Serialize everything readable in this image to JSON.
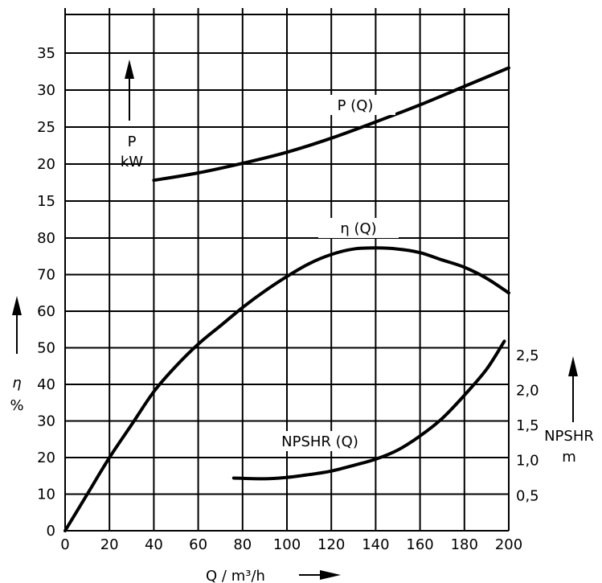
{
  "chart_data": {
    "type": "line",
    "x": {
      "label": "Q / m³/h",
      "range": [
        0,
        200
      ],
      "ticks": [
        0,
        20,
        40,
        60,
        80,
        100,
        120,
        140,
        160,
        180,
        200
      ]
    },
    "axes": {
      "power": {
        "label": "P",
        "unit": "kW",
        "range": [
          10,
          35
        ],
        "ticks": [
          15,
          20,
          25,
          30,
          35
        ]
      },
      "efficiency": {
        "label": "η",
        "unit": "%",
        "range": [
          0,
          80
        ],
        "ticks": [
          0,
          10,
          20,
          30,
          40,
          50,
          60,
          70,
          80
        ]
      },
      "npshr": {
        "label": "NPSHR",
        "unit": "m",
        "range": [
          0,
          4
        ],
        "ticks": [
          "0,5",
          "1,0",
          "1,5",
          "2,0",
          "2,5"
        ],
        "tick_values": [
          0.5,
          1.0,
          1.5,
          2.0,
          2.5
        ]
      }
    },
    "series": [
      {
        "name": "P (Q)",
        "axis": "power",
        "x": [
          40,
          60,
          80,
          100,
          120,
          140,
          160,
          180,
          200
        ],
        "y": [
          17.8,
          18.8,
          20.1,
          21.6,
          23.5,
          25.7,
          28.0,
          30.5,
          33.0
        ]
      },
      {
        "name": "η (Q)",
        "axis": "efficiency",
        "x": [
          0,
          10,
          20,
          30,
          40,
          50,
          60,
          70,
          80,
          90,
          100,
          110,
          120,
          130,
          140,
          150,
          160,
          170,
          180,
          190,
          200
        ],
        "y": [
          0,
          10,
          20,
          29,
          38,
          45,
          51,
          56,
          61,
          65.5,
          69.5,
          73,
          75.5,
          77,
          77.3,
          77,
          76,
          74,
          72,
          69,
          65
        ]
      },
      {
        "name": "NPSHR (Q)",
        "axis": "npshr",
        "x": [
          76,
          90,
          100,
          110,
          120,
          130,
          140,
          150,
          160,
          170,
          180,
          190,
          198
        ],
        "y": [
          0.75,
          0.74,
          0.76,
          0.8,
          0.85,
          0.93,
          1.02,
          1.15,
          1.35,
          1.6,
          1.93,
          2.3,
          2.7
        ]
      }
    ]
  }
}
